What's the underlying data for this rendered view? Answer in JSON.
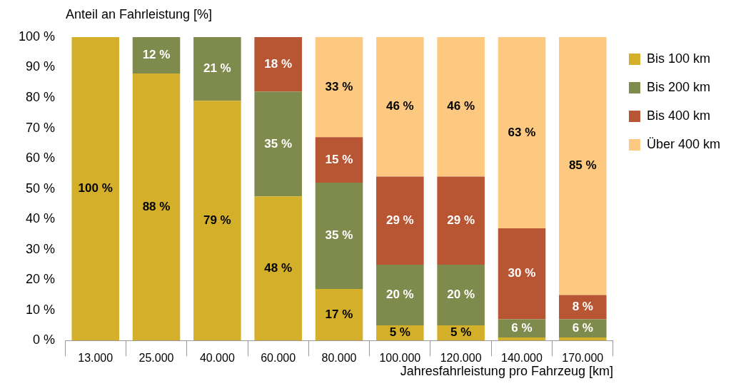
{
  "chart_data": {
    "type": "bar",
    "stacked": true,
    "xlabel": "Jahresfahrleistung pro Fahrzeug [km]",
    "ylabel": "Anteil an Fahrleistung [%]",
    "categories": [
      "13.000",
      "25.000",
      "40.000",
      "60.000",
      "80.000",
      "100.000",
      "120.000",
      "140.000",
      "170.000"
    ],
    "series": [
      {
        "name": "Bis 100 km",
        "color": "#d4af2a",
        "values": [
          100,
          88,
          79,
          47.5,
          17,
          5,
          5,
          1,
          1
        ],
        "value_labels": [
          "100 %",
          "88 %",
          "79 %",
          "48 %",
          "17 %",
          "5 %",
          "5 %",
          null,
          null
        ]
      },
      {
        "name": "Bis 200 km",
        "color": "#7f8a4d",
        "values": [
          0,
          12,
          21,
          34.5,
          35,
          20,
          20,
          6,
          6
        ],
        "value_labels": [
          null,
          "12 %",
          "21 %",
          "35 %",
          "35 %",
          "20 %",
          "20 %",
          "6 %",
          "6 %"
        ]
      },
      {
        "name": "Bis 400 km",
        "color": "#b85533",
        "values": [
          0,
          0,
          0,
          18,
          15,
          29,
          29,
          30,
          8
        ],
        "value_labels": [
          null,
          null,
          null,
          "18 %",
          "15 %",
          "29 %",
          "29 %",
          "30 %",
          "8 %"
        ]
      },
      {
        "name": "Über 400 km",
        "color": "#fdc981",
        "values": [
          0,
          0,
          0,
          0,
          33,
          46,
          46,
          63,
          85
        ],
        "value_labels": [
          null,
          null,
          null,
          null,
          "33 %",
          "46 %",
          "46 %",
          "63 %",
          "85 %"
        ]
      }
    ],
    "ylim": [
      0,
      100
    ],
    "yticks": [
      {
        "value": 0,
        "label": "0 %"
      },
      {
        "value": 10,
        "label": "10 %"
      },
      {
        "value": 20,
        "label": "20 %"
      },
      {
        "value": 30,
        "label": "30 %"
      },
      {
        "value": 40,
        "label": "40 %"
      },
      {
        "value": 50,
        "label": "50 %"
      },
      {
        "value": 60,
        "label": "60 %"
      },
      {
        "value": 70,
        "label": "70 %"
      },
      {
        "value": 80,
        "label": "80 %"
      },
      {
        "value": 90,
        "label": "90 %"
      },
      {
        "value": 100,
        "label": "100 %"
      }
    ],
    "grid": false,
    "legend": "top right"
  }
}
